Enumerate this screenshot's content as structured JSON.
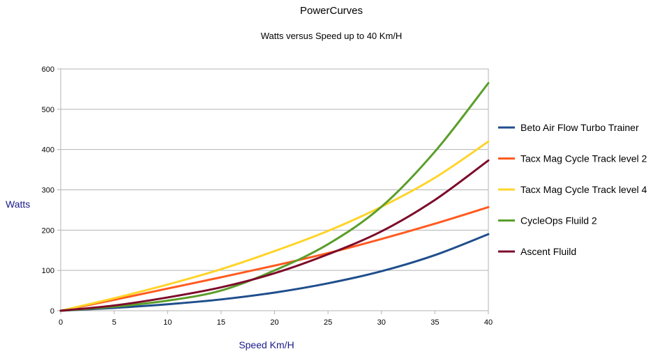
{
  "chart_data": {
    "type": "line",
    "title": "PowerCurves",
    "subtitle": "Watts versus Speed up to 40 Km/H",
    "xlabel": "Speed Km/H",
    "ylabel": "Watts",
    "xlim": [
      0,
      40
    ],
    "ylim": [
      0,
      600
    ],
    "xticks": [
      "0",
      "5",
      "10",
      "15",
      "20",
      "25",
      "30",
      "35",
      "40"
    ],
    "yticks": [
      "0",
      "100",
      "200",
      "300",
      "400",
      "500",
      "600"
    ],
    "grid": "horizontal",
    "legend": "right",
    "x": [
      0,
      5,
      10,
      15,
      20,
      25,
      30,
      35,
      40
    ],
    "series": [
      {
        "name": "Beto Air Flow Turbo Trainer",
        "color": "#1f4e8c",
        "values": [
          0,
          7,
          16,
          28,
          45,
          68,
          98,
          138,
          190
        ]
      },
      {
        "name": "Tacx Mag Cycle Track level 2",
        "color": "#ff5a1f",
        "values": [
          0,
          27,
          55,
          83,
          112,
          143,
          178,
          216,
          257
        ]
      },
      {
        "name": "Tacx Mag Cycle Track level 4",
        "color": "#ffd42a",
        "values": [
          0,
          31,
          65,
          103,
          148,
          198,
          258,
          330,
          420
        ]
      },
      {
        "name": "CycleOps Fluild 2",
        "color": "#5a9e2a",
        "values": [
          0,
          10,
          25,
          50,
          100,
          165,
          258,
          395,
          565
        ]
      },
      {
        "name": "Ascent Fluild",
        "color": "#7d0a2a",
        "values": [
          0,
          13,
          33,
          58,
          93,
          140,
          197,
          275,
          373
        ]
      }
    ]
  }
}
